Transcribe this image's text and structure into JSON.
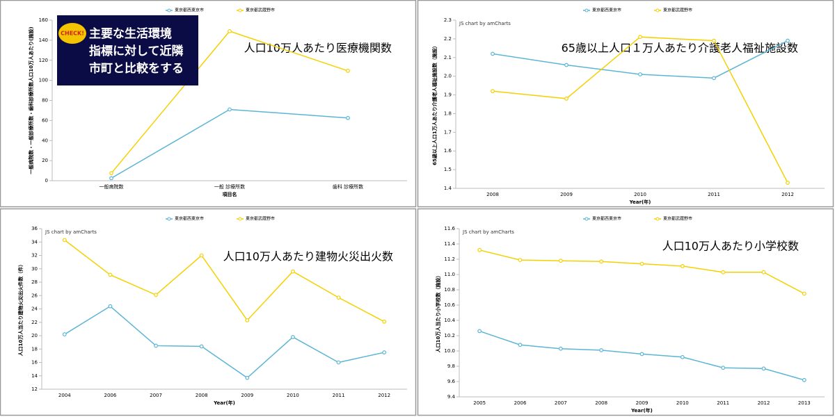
{
  "banner": {
    "badge": "CHECK!",
    "lines": [
      "主要な生活環境",
      "指標に対して近隣",
      "市町と比較をする"
    ]
  },
  "chart_data": [
    {
      "type": "line",
      "annotation": "人口10万人あたり医療機関数",
      "x_label": "項目名",
      "y_label": "一般病院数・一般診療所数・歯科診療所数人口10万人あたり(施設)",
      "categories": [
        "一般病院数",
        "一般 診療所数",
        "歯科 診療所数"
      ],
      "series": [
        {
          "name": "東京都西東京市",
          "color": "#5bb5d5",
          "values": [
            2.5,
            71,
            62.5
          ]
        },
        {
          "name": "東京都武蔵野市",
          "color": "#f5d000",
          "values": [
            7.5,
            149,
            109.5
          ]
        }
      ],
      "ylim": [
        0,
        160
      ],
      "yticks": [
        0,
        20,
        40,
        60,
        80,
        100,
        120,
        140,
        160
      ],
      "grid": false
    },
    {
      "type": "line",
      "annotation": "65歳以上人口１万人あたり介護老人福祉施設数",
      "credit": "JS chart by amCharts",
      "x_label": "Year(年)",
      "y_label": "65歳以上人口1万人あたり介護老人福祉施設数（施設）",
      "categories": [
        "2008",
        "2009",
        "2010",
        "2011",
        "2012"
      ],
      "series": [
        {
          "name": "東京都西東京市",
          "color": "#5bb5d5",
          "values": [
            2.12,
            2.06,
            2.01,
            1.99,
            2.19
          ]
        },
        {
          "name": "東京都武蔵野市",
          "color": "#f5d000",
          "values": [
            1.92,
            1.88,
            2.21,
            2.19,
            1.43
          ]
        }
      ],
      "ylim": [
        1.4,
        2.3
      ],
      "yticks": [
        1.4,
        1.5,
        1.6,
        1.7,
        1.8,
        1.9,
        {
          "value": 2,
          "label": "2.0"
        },
        2.1,
        2.2,
        2.3
      ],
      "grid": false
    },
    {
      "type": "line",
      "annotation": "人口10万人あたり建物火災出火数",
      "credit": "JS chart by amCharts",
      "x_label": "Year(年)",
      "y_label": "人口10万人当たり建物火災出火件数（件）",
      "categories": [
        "2004",
        "2006",
        "2007",
        "2008",
        "2009",
        "2010",
        "2011",
        "2012"
      ],
      "series": [
        {
          "name": "東京都西東京市",
          "color": "#5bb5d5",
          "values": [
            20.2,
            24.4,
            18.5,
            18.4,
            13.7,
            19.8,
            16.0,
            17.5
          ]
        },
        {
          "name": "東京都武蔵野市",
          "color": "#f5d000",
          "values": [
            34.3,
            29.1,
            26.1,
            32.0,
            22.3,
            29.6,
            25.7,
            22.1
          ]
        }
      ],
      "ylim": [
        12,
        36
      ],
      "yticks": [
        12,
        14,
        16,
        18,
        20,
        22,
        24,
        26,
        28,
        30,
        32,
        34,
        36
      ],
      "grid": false
    },
    {
      "type": "line",
      "annotation": "人口10万人あたり小学校数",
      "credit": "JS chart by amCharts",
      "x_label": "Year(年)",
      "y_label": "人口10万人当たり小学校数（施設）",
      "categories": [
        "2005",
        "2006",
        "2007",
        "2008",
        "2009",
        "2010",
        "2011",
        "2012",
        "2013"
      ],
      "series": [
        {
          "name": "東京都西東京市",
          "color": "#5bb5d5",
          "values": [
            10.26,
            10.08,
            10.03,
            10.01,
            9.96,
            9.92,
            9.78,
            9.77,
            9.62
          ]
        },
        {
          "name": "東京都武蔵野市",
          "color": "#f5d000",
          "values": [
            11.32,
            11.19,
            11.18,
            11.17,
            11.14,
            11.11,
            11.03,
            11.03,
            10.75
          ]
        }
      ],
      "ylim": [
        9.4,
        11.6
      ],
      "yticks": [
        9.4,
        9.6,
        9.8,
        {
          "value": 10,
          "label": "10.0"
        },
        10.2,
        10.4,
        10.6,
        10.8,
        {
          "value": 11,
          "label": "11.0"
        },
        11.2,
        11.4,
        11.6
      ],
      "grid": false
    }
  ]
}
